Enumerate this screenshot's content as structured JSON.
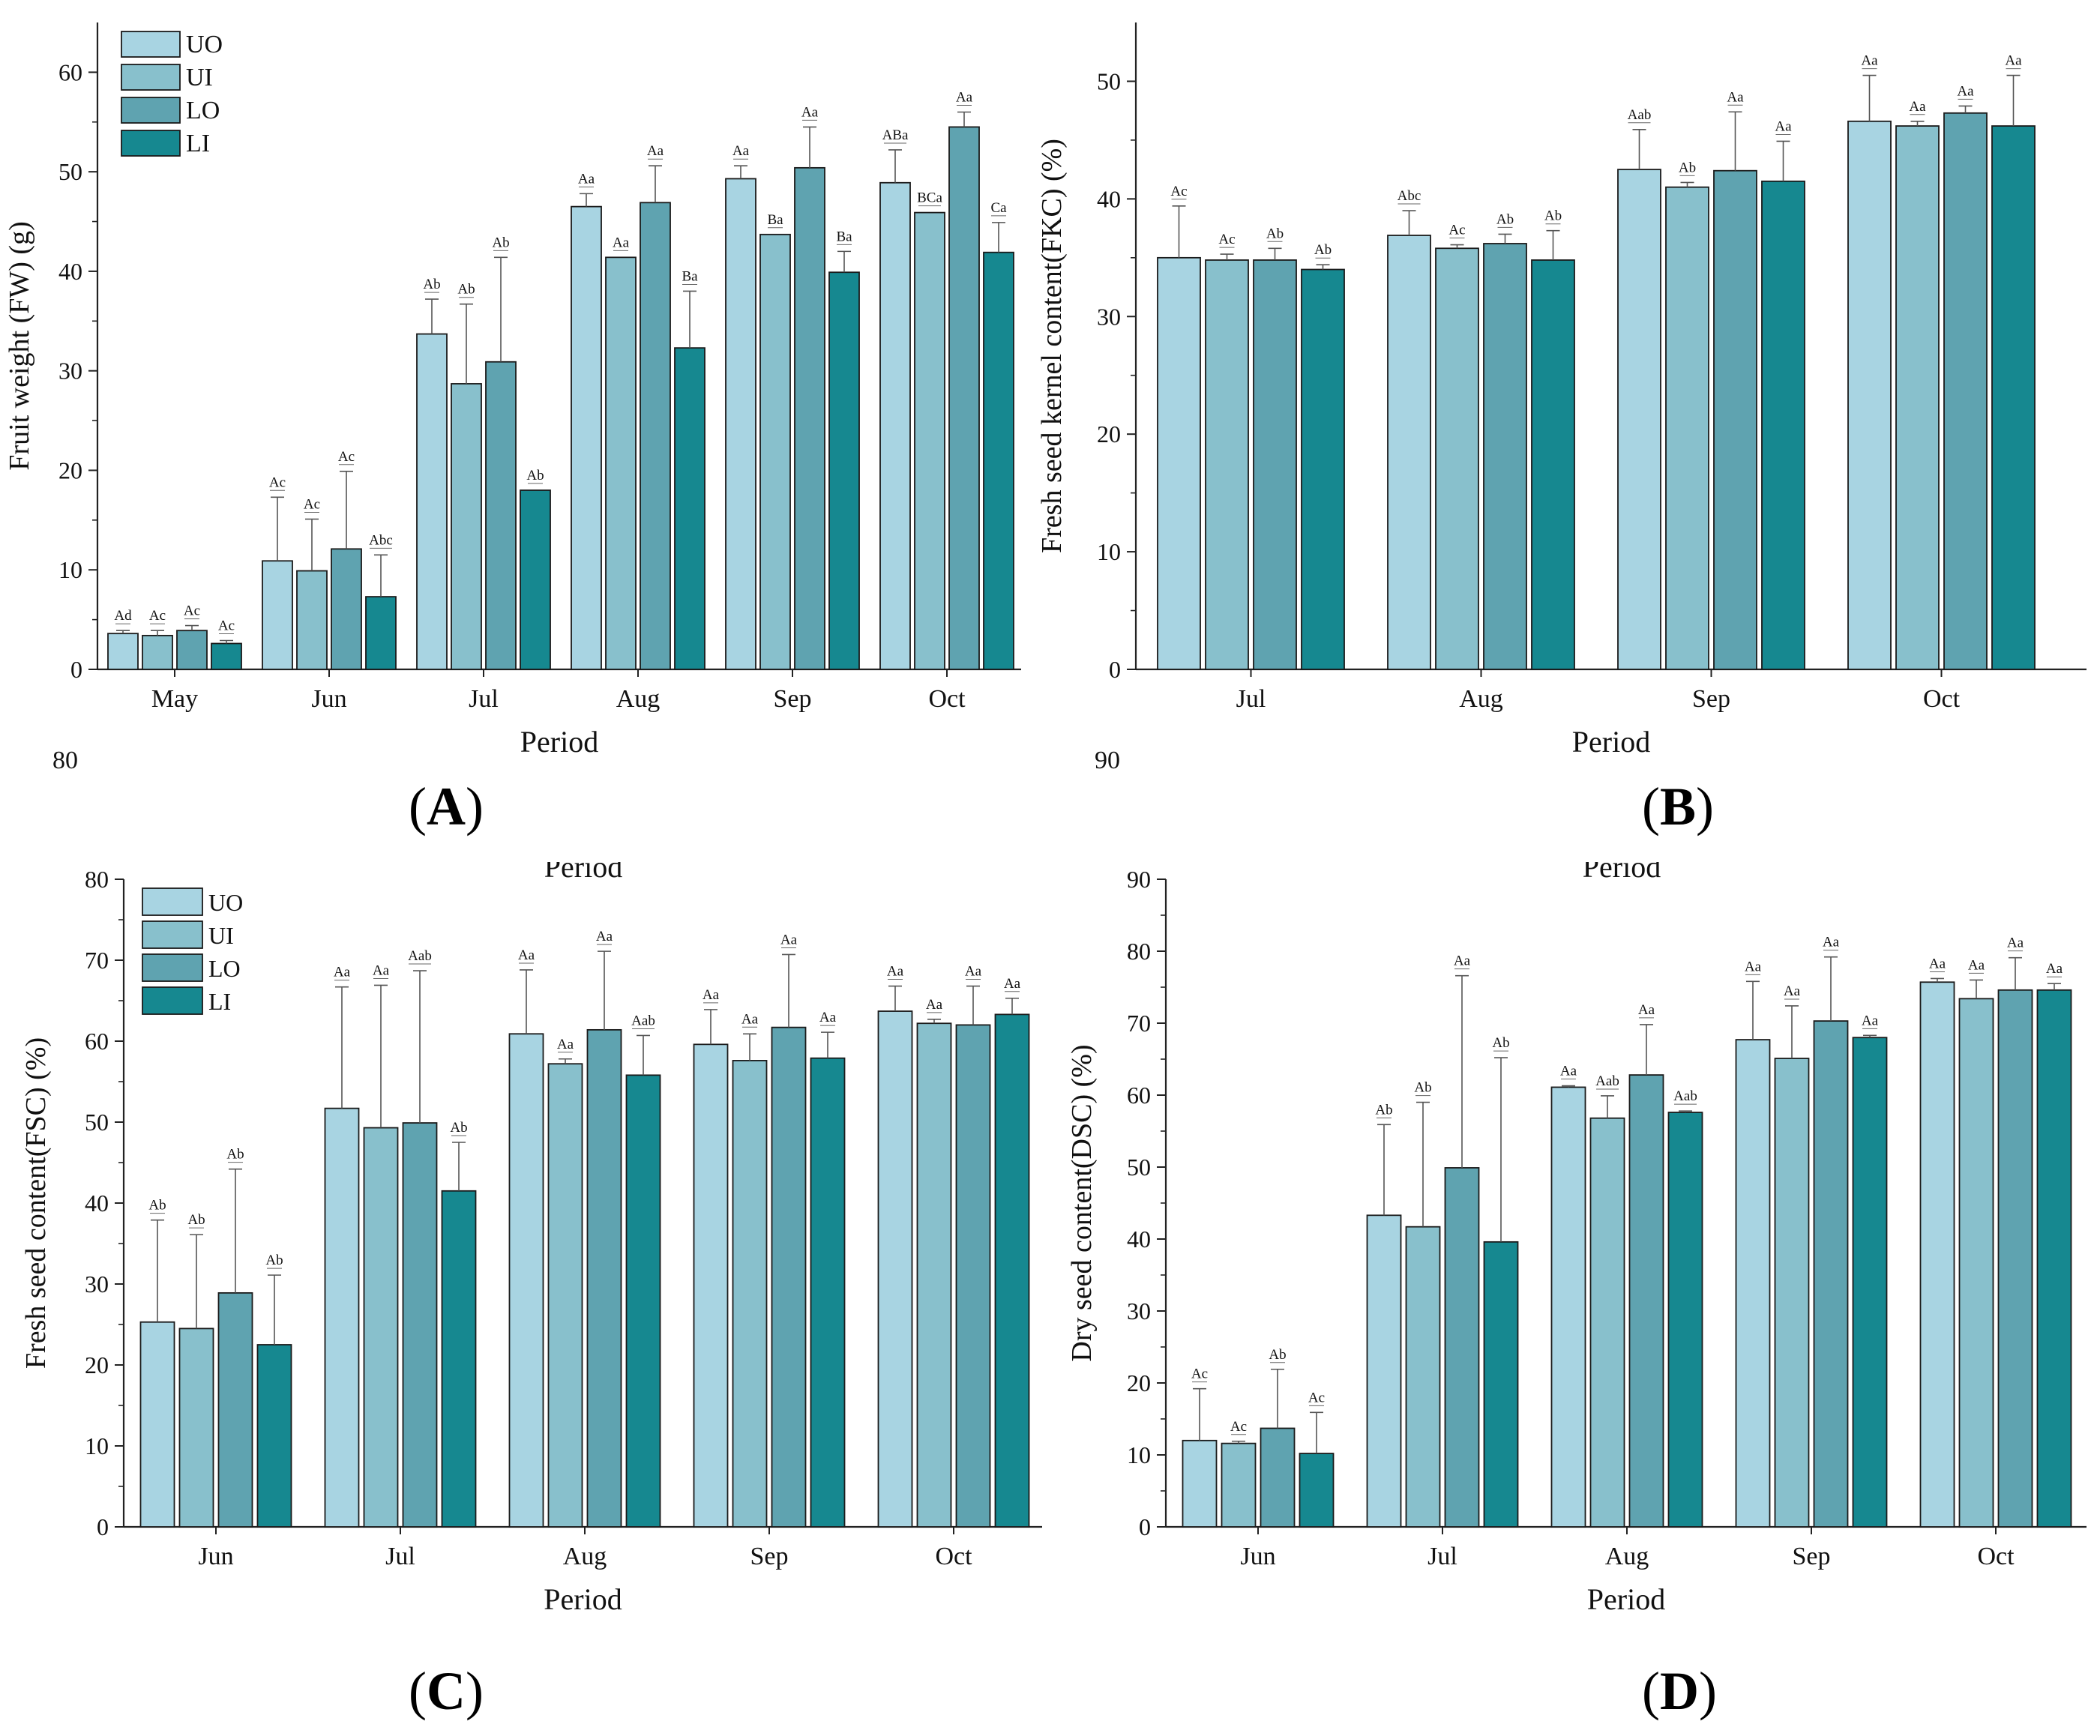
{
  "colors": {
    "UO": "#a8d4e2",
    "UI": "#88c0cc",
    "LO": "#5fa3b0",
    "LI": "#168890"
  },
  "legend": [
    "UO",
    "UI",
    "LO",
    "LI"
  ],
  "chart_data": [
    {
      "id": "A",
      "type": "bar",
      "panel_label": "A",
      "ylabel": "Fruit weight (FW) (g)",
      "xlabel": "Period",
      "ylim": [
        0,
        65
      ],
      "yticks": [
        0,
        10,
        20,
        30,
        40,
        50,
        60
      ],
      "categories": [
        "May",
        "Jun",
        "Jul",
        "Aug",
        "Sep",
        "Oct"
      ],
      "series": [
        {
          "name": "UO",
          "values": [
            3.6,
            10.9,
            33.7,
            46.5,
            49.3,
            48.9
          ],
          "errors": [
            0.3,
            6.4,
            3.5,
            1.3,
            1.3,
            3.3
          ],
          "labels": [
            "Ad",
            "Ac",
            "Ab",
            "Aa",
            "Aa",
            "ABa"
          ]
        },
        {
          "name": "UI",
          "values": [
            3.4,
            9.9,
            28.7,
            41.4,
            43.7,
            45.9
          ],
          "errors": [
            0.5,
            5.2,
            8.0,
            0,
            0,
            0
          ],
          "labels": [
            "Ac",
            "Ac",
            "Ab",
            "Aa",
            "Ba",
            "BCa"
          ]
        },
        {
          "name": "LO",
          "values": [
            3.9,
            12.1,
            30.9,
            46.9,
            50.4,
            54.5
          ],
          "errors": [
            0.5,
            7.8,
            10.5,
            3.7,
            4.1,
            1.5
          ],
          "labels": [
            "Ac",
            "Ac",
            "Ab",
            "Aa",
            "Aa",
            "Aa"
          ]
        },
        {
          "name": "LI",
          "values": [
            2.6,
            7.3,
            18.0,
            32.3,
            39.9,
            41.9
          ],
          "errors": [
            0.3,
            4.2,
            0,
            5.7,
            2.1,
            3.0
          ],
          "labels": [
            "Ac",
            "Abc",
            "Ab",
            "Ba",
            "Ba",
            "Ca"
          ]
        }
      ],
      "legend_position": "top-left"
    },
    {
      "id": "B",
      "type": "bar",
      "panel_label": "B",
      "ylabel": "Fresh seed kernel content(FKC) (%)",
      "xlabel": "Period",
      "ylim": [
        0,
        55
      ],
      "yticks": [
        0,
        10,
        20,
        30,
        40,
        50
      ],
      "categories": [
        "Jul",
        "Aug",
        "Sep",
        "Oct"
      ],
      "series": [
        {
          "name": "UO",
          "values": [
            35.0,
            36.9,
            42.5,
            46.6
          ],
          "errors": [
            4.4,
            2.1,
            3.4,
            3.9
          ],
          "labels": [
            "Ac",
            "Abc",
            "Aab",
            "Aa"
          ]
        },
        {
          "name": "UI",
          "values": [
            34.8,
            35.8,
            41.0,
            46.2
          ],
          "errors": [
            0.5,
            0.3,
            0.4,
            0.4
          ],
          "labels": [
            "Ac",
            "Ac",
            "Ab",
            "Aa"
          ]
        },
        {
          "name": "LO",
          "values": [
            34.8,
            36.2,
            42.4,
            47.3
          ],
          "errors": [
            1.0,
            0.8,
            5.0,
            0.6
          ],
          "labels": [
            "Ab",
            "Ab",
            "Aa",
            "Aa"
          ]
        },
        {
          "name": "LI",
          "values": [
            34.0,
            34.8,
            41.5,
            46.2
          ],
          "errors": [
            0.4,
            2.5,
            3.4,
            4.3
          ],
          "labels": [
            "Ab",
            "Ab",
            "Aa",
            "Aa"
          ]
        }
      ]
    },
    {
      "id": "C",
      "type": "bar",
      "panel_label": "C",
      "ylabel": "Fresh seed content(FSC) (%)",
      "xlabel": "Period",
      "ylim": [
        0,
        80
      ],
      "yticks": [
        0,
        10,
        20,
        30,
        40,
        50,
        60,
        70,
        80
      ],
      "categories": [
        "Jun",
        "Jul",
        "Aug",
        "Sep",
        "Oct"
      ],
      "series": [
        {
          "name": "UO",
          "values": [
            25.3,
            51.7,
            60.9,
            59.6,
            63.7
          ],
          "errors": [
            12.6,
            15.0,
            7.9,
            4.3,
            3.1
          ],
          "labels": [
            "Ab",
            "Aa",
            "Aa",
            "Aa",
            "Aa"
          ]
        },
        {
          "name": "UI",
          "values": [
            24.5,
            49.3,
            57.2,
            57.6,
            62.2
          ],
          "errors": [
            11.6,
            17.6,
            0.6,
            3.3,
            0.5
          ],
          "labels": [
            "Ab",
            "Aa",
            "Aa",
            "Aa",
            "Aa"
          ]
        },
        {
          "name": "LO",
          "values": [
            28.9,
            49.9,
            61.4,
            61.7,
            62.0
          ],
          "errors": [
            15.3,
            18.8,
            9.7,
            9.0,
            4.8
          ],
          "labels": [
            "Ab",
            "Aab",
            "Aa",
            "Aa",
            "Aa"
          ]
        },
        {
          "name": "LI",
          "values": [
            22.5,
            41.5,
            55.8,
            57.9,
            63.3
          ],
          "errors": [
            8.6,
            6.0,
            4.9,
            3.2,
            2.0
          ],
          "labels": [
            "Ab",
            "Ab",
            "Aab",
            "Aa",
            "Aa"
          ]
        }
      ],
      "legend_position": "top-left",
      "overlap_text": "Period"
    },
    {
      "id": "D",
      "type": "bar",
      "panel_label": "D",
      "ylabel": "Dry seed content(DSC) (%)",
      "xlabel": "Period",
      "ylim": [
        0,
        90
      ],
      "yticks": [
        0,
        10,
        20,
        30,
        40,
        50,
        60,
        70,
        80,
        90
      ],
      "categories": [
        "Jun",
        "Jul",
        "Aug",
        "Sep",
        "Oct"
      ],
      "series": [
        {
          "name": "UO",
          "values": [
            12.0,
            43.3,
            61.1,
            67.7,
            75.7
          ],
          "errors": [
            7.2,
            12.6,
            0.2,
            8.1,
            0.5
          ],
          "labels": [
            "Ac",
            "Ab",
            "Aa",
            "Aa",
            "Aa"
          ]
        },
        {
          "name": "UI",
          "values": [
            11.6,
            41.7,
            56.8,
            65.1,
            73.4
          ],
          "errors": [
            0.3,
            17.3,
            3.1,
            7.3,
            2.6
          ],
          "labels": [
            "Ac",
            "Ab",
            "Aab",
            "Aa",
            "Aa"
          ]
        },
        {
          "name": "LO",
          "values": [
            13.7,
            49.9,
            62.8,
            70.3,
            74.6
          ],
          "errors": [
            8.2,
            26.7,
            7.0,
            8.9,
            4.5
          ],
          "labels": [
            "Ab",
            "Aa",
            "Aa",
            "Aa",
            "Aa"
          ]
        },
        {
          "name": "LI",
          "values": [
            10.2,
            39.6,
            57.6,
            68.0,
            74.6
          ],
          "errors": [
            5.7,
            25.6,
            0.2,
            0.3,
            0.9
          ],
          "labels": [
            "Ac",
            "Ab",
            "Aab",
            "Aa",
            "Aa"
          ]
        }
      ],
      "overlap_text": "Period"
    }
  ],
  "overlap_fragments": {
    "A": "80",
    "B": "90"
  }
}
